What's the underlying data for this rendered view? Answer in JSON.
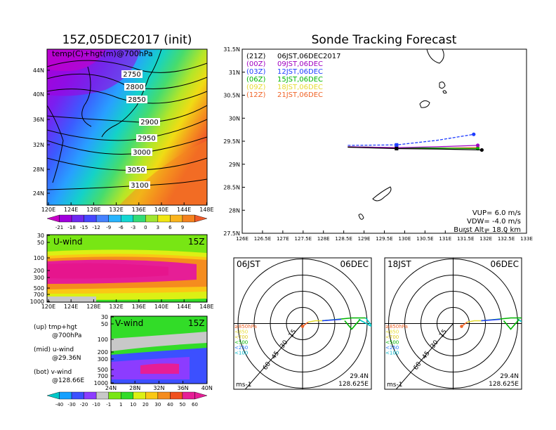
{
  "init_title": "15Z,05DEC2017 (init)",
  "forecast_title": "Sonde Tracking Forecast",
  "map_panel": {
    "label": "temp(C)+hgt(m)@700hPa",
    "lat_ticks": [
      "44N",
      "40N",
      "36N",
      "32N",
      "28N",
      "24N"
    ],
    "lon_ticks": [
      "120E",
      "124E",
      "128E",
      "132E",
      "136E",
      "140E",
      "144E",
      "148E"
    ],
    "contours": [
      "2750",
      "2800",
      "2850",
      "2900",
      "2950",
      "3000",
      "3050",
      "3100"
    ],
    "colorbar": [
      "-21",
      "-18",
      "-15",
      "-12",
      "-9",
      "-6",
      "-3",
      "0",
      "3",
      "6",
      "9"
    ]
  },
  "u_panel": {
    "label": "U-wind",
    "time": "15Z",
    "levels": [
      "30",
      "50",
      "100",
      "200",
      "300",
      "500",
      "700",
      "1000"
    ],
    "lon_ticks": [
      "120E",
      "124E",
      "128E",
      "132E",
      "136E",
      "140E",
      "144E",
      "148E"
    ]
  },
  "v_panel": {
    "label": "V-wind",
    "time": "15Z",
    "levels": [
      "30",
      "50",
      "100",
      "200",
      "300",
      "500",
      "700",
      "1000"
    ],
    "lat_ticks": [
      "24N",
      "28N",
      "32N",
      "36N",
      "40N"
    ],
    "colorbar": [
      "-40",
      "-30",
      "-20",
      "-10",
      "-1",
      "1",
      "10",
      "20",
      "30",
      "40",
      "50",
      "60"
    ]
  },
  "legend_text": [
    "(up) tmp+hgt",
    "@700hPa",
    "(mid) u-wind",
    "@29.36N",
    "(bot) v-wind",
    "@128.66E"
  ],
  "track": {
    "legend": [
      {
        "code": "(21Z)",
        "text": "06JST,06DEC2017",
        "color": "#000000"
      },
      {
        "code": "(00Z)",
        "text": "09JST,06DEC",
        "color": "#a000c0"
      },
      {
        "code": "(03Z)",
        "text": "12JST,06DEC",
        "color": "#1e3cff"
      },
      {
        "code": "(06Z)",
        "text": "15JST,06DEC",
        "color": "#00b400"
      },
      {
        "code": "(09Z)",
        "text": "18JST,06DEC",
        "color": "#e6dc32"
      },
      {
        "code": "(12Z)",
        "text": "21JST,06DEC",
        "color": "#f06428"
      }
    ],
    "lat_ticks": [
      "31.5N",
      "31N",
      "30.5N",
      "30N",
      "29.5N",
      "29N",
      "28.5N",
      "28N",
      "27.5N"
    ],
    "lon_ticks": [
      "126E",
      "126.5E",
      "127E",
      "127.5E",
      "128E",
      "128.5E",
      "129E",
      "129.5E",
      "130E",
      "130.5E",
      "131E",
      "131.5E",
      "132E",
      "132.5E",
      "133E"
    ],
    "vup": "VUP= 6.0 m/s",
    "vdw": "VDW= -4.0 m/s",
    "burst": "Burst Alt= 18.0 km"
  },
  "hodo_left": {
    "time": "06JST",
    "date": "06DEC",
    "lat": "29.4N",
    "lon": "128.625E",
    "unit": "ms-1",
    "rings": [
      "15",
      "30",
      "45",
      "60"
    ]
  },
  "hodo_right": {
    "time": "18JST",
    "date": "06DEC",
    "lat": "29.4N",
    "lon": "128.625E",
    "unit": "ms-1",
    "rings": [
      "15",
      "30",
      "45",
      "60"
    ]
  },
  "hodo_legend": [
    "≥850hPa",
    "<850",
    "<700",
    "<500",
    "<250",
    "<100"
  ],
  "chart_data": [
    {
      "type": "line",
      "title": "Sonde Tracking Forecast",
      "xlim": [
        126,
        133
      ],
      "ylim": [
        27.5,
        31.5
      ],
      "series": [
        {
          "name": "(21Z) 06JST,06DEC2017",
          "x": [
            128.6,
            129.8,
            130.8,
            131.9
          ],
          "y": [
            29.37,
            29.34,
            29.33,
            29.31
          ]
        },
        {
          "name": "(00Z) 09JST,06DEC",
          "x": [
            128.6,
            129.8,
            130.8,
            131.8
          ],
          "y": [
            29.38,
            29.36,
            29.38,
            29.41
          ]
        },
        {
          "name": "(03Z) 12JST,06DEC",
          "x": [
            128.6,
            129.8,
            130.8,
            131.7
          ],
          "y": [
            29.41,
            29.42,
            29.52,
            29.65
          ]
        },
        {
          "name": "(06Z) 15JST,06DEC",
          "x": [
            128.6,
            129.8,
            130.8,
            131.8
          ],
          "y": [
            29.38,
            29.36,
            29.35,
            29.34
          ]
        },
        {
          "name": "(09Z) 18JST,06DEC",
          "x": [
            128.6,
            129.8,
            130.8,
            131.8
          ],
          "y": [
            29.38,
            29.36,
            29.35,
            29.35
          ]
        },
        {
          "name": "(12Z) 21JST,06DEC",
          "x": [
            128.6,
            129.8,
            130.8,
            131.8
          ],
          "y": [
            29.37,
            29.35,
            29.35,
            29.36
          ]
        }
      ]
    },
    {
      "type": "heatmap",
      "label": "temp(C)+hgt(m)@700hPa",
      "contour_levels": [
        2750,
        2800,
        2850,
        2900,
        2950,
        3000,
        3050,
        3100
      ],
      "color_range": [
        -21,
        9
      ]
    },
    {
      "type": "heatmap",
      "label": "U-wind",
      "time": "15Z"
    },
    {
      "type": "heatmap",
      "label": "V-wind",
      "time": "15Z"
    }
  ],
  "colors": {
    "temp_scale": [
      "#c800c8",
      "#a000dc",
      "#6e28f0",
      "#4646ff",
      "#4682ff",
      "#28b4ff",
      "#14d7d2",
      "#32dc78",
      "#a0e632",
      "#f0e614",
      "#fab41e",
      "#f5821e",
      "#f05a28"
    ],
    "wind_scale": [
      "#00c8c8",
      "#14a0ff",
      "#3c50ff",
      "#8c3cff",
      "#c8c8c8",
      "#78e614",
      "#32dc28",
      "#dcf014",
      "#fac814",
      "#f58c1e",
      "#f0501e",
      "#e61e96"
    ]
  }
}
